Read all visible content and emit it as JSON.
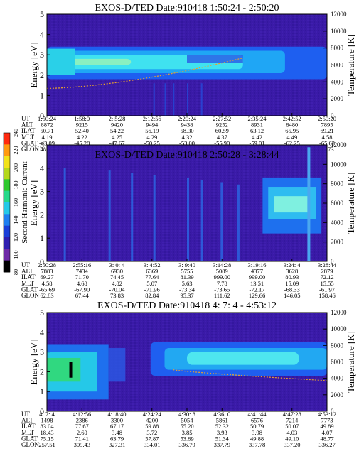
{
  "chart_data": [
    {
      "type": "heatmap",
      "title": "EXOS-D/TED   Date:910418  1:50:24 - 2:50:20",
      "ylabel": "Energy [eV]",
      "y2label": "Temperature [K]",
      "ylim": [
        0,
        5
      ],
      "y2lim": [
        0,
        12000
      ],
      "yticks": [
        "0",
        "1",
        "2",
        "3",
        "4",
        "5"
      ],
      "y2ticks": [
        "0",
        "2000",
        "4000",
        "6000",
        "8000",
        "10000",
        "12000"
      ],
      "rows": [
        {
          "label": "UT",
          "values": [
            "1:50:24",
            "1:58:0",
            "2: 5:28",
            "2:12:56",
            "2:20:24",
            "2:27:52",
            "2:35:24",
            "2:42:52",
            "2:50:20"
          ]
        },
        {
          "label": "ALT",
          "values": [
            "8872",
            "9215",
            "9420",
            "9494",
            "9438",
            "9252",
            "8931",
            "8480",
            "7895"
          ]
        },
        {
          "label": "ILAT",
          "values": [
            "50.71",
            "52.40",
            "54.22",
            "56.19",
            "58.30",
            "60.59",
            "63.12",
            "65.95",
            "69.21"
          ]
        },
        {
          "label": "MLT",
          "values": [
            "4.19",
            "4.22",
            "4.25",
            "4.29",
            "4.32",
            "4.37",
            "4.42",
            "4.49",
            "4.58"
          ]
        },
        {
          "label": "GLAT",
          "values": [
            "-43.09",
            "-45.28",
            "-47.67",
            "-50.25",
            "-53.00",
            "-55.90",
            "-59.01",
            "-62.25",
            "-65.63"
          ]
        },
        {
          "label": "GLON",
          "values": [
            "48.61",
            "48.99",
            "49.51",
            "50.23",
            "51.24",
            "52.68",
            "54.78",
            "57.90",
            "62.73"
          ]
        }
      ]
    },
    {
      "type": "heatmap",
      "title": "EXOS-D/TED   Date:910418  2:50:28 - 3:28:44",
      "ylabel": "Energy [eV]",
      "y2label": "Temperature [K]",
      "ylim": [
        0,
        5
      ],
      "y2lim": [
        0,
        12000
      ],
      "yticks": [
        "0",
        "1",
        "2",
        "3",
        "4",
        "5"
      ],
      "y2ticks": [
        "0",
        "2000",
        "4000",
        "6000",
        "8000",
        "10000",
        "12000"
      ],
      "rows": [
        {
          "label": "UT",
          "values": [
            "2:50:28",
            "2:55:16",
            "3: 0: 4",
            "3: 4:52",
            "3: 9:40",
            "3:14:28",
            "3:19:16",
            "3:24: 4",
            "3:28:44"
          ]
        },
        {
          "label": "ALT",
          "values": [
            "7883",
            "7434",
            "6930",
            "6369",
            "5755",
            "5089",
            "4377",
            "3628",
            "2879"
          ]
        },
        {
          "label": "ILAT",
          "values": [
            "69.27",
            "71.70",
            "74.45",
            "77.64",
            "81.39",
            "999.00",
            "999.00",
            "80.93",
            "72.12"
          ]
        },
        {
          "label": "MLT",
          "values": [
            "4.58",
            "4.68",
            "4.82",
            "5.07",
            "5.63",
            "7.78",
            "13.51",
            "15.09",
            "15.55"
          ]
        },
        {
          "label": "GLAT",
          "values": [
            "-65.69",
            "-67.90",
            "-70.04",
            "-71.96",
            "-73.34",
            "-73.65",
            "-72.17",
            "-68.33",
            "-61.97"
          ]
        },
        {
          "label": "GLON",
          "values": [
            "62.83",
            "67.44",
            "73.83",
            "82.84",
            "95.37",
            "111.62",
            "129.66",
            "146.05",
            "158.46"
          ]
        }
      ]
    },
    {
      "type": "heatmap",
      "title": "EXOS-D/TED   Date:910418  4: 7: 4 - 4:53:12",
      "ylabel": "Energy [eV]",
      "y2label": "Temperature [K]",
      "ylim": [
        0,
        5
      ],
      "y2lim": [
        0,
        12000
      ],
      "yticks": [
        "0",
        "1",
        "2",
        "3",
        "4",
        "5"
      ],
      "y2ticks": [
        "0",
        "2000",
        "4000",
        "6000",
        "8000",
        "10000",
        "12000"
      ],
      "rows": [
        {
          "label": "UT",
          "values": [
            "4: 7: 4",
            "4:12:56",
            "4:18:40",
            "4:24:24",
            "4:30: 8",
            "4:36: 0",
            "4:41:44",
            "4:47:28",
            "4:53:12"
          ]
        },
        {
          "label": "ALT",
          "values": [
            "1498",
            "2386",
            "3300",
            "4200",
            "5054",
            "5861",
            "6576",
            "7214",
            "7773"
          ]
        },
        {
          "label": "ILAT",
          "values": [
            "83.04",
            "77.67",
            "67.17",
            "59.88",
            "55.20",
            "52.32",
            "50.79",
            "50.07",
            "49.89"
          ]
        },
        {
          "label": "MLT",
          "values": [
            "18.43",
            "2.60",
            "3.48",
            "3.72",
            "3.85",
            "3.93",
            "3.98",
            "4.03",
            "4.07"
          ]
        },
        {
          "label": "GLAT",
          "values": [
            "75.15",
            "71.41",
            "63.79",
            "57.87",
            "53.89",
            "51.34",
            "49.88",
            "49.10",
            "48.77"
          ]
        },
        {
          "label": "GLON",
          "values": [
            "257.51",
            "309.43",
            "327.31",
            "334.01",
            "336.79",
            "337.79",
            "337.78",
            "337.20",
            "336.27"
          ]
        }
      ]
    }
  ],
  "colorbar": {
    "label": "Second Harmonic Current",
    "ticks": [
      "80",
      "100",
      "120",
      "140",
      "160",
      "180",
      "200",
      "220",
      "240"
    ],
    "colors": [
      "#000000",
      "#6e2aa8",
      "#2f1fb0",
      "#1b3fd8",
      "#1f7ff0",
      "#25c9e8",
      "#27d98a",
      "#2fc82f",
      "#b5d81c",
      "#f2e21a",
      "#ff9a10",
      "#ff2a10"
    ]
  }
}
